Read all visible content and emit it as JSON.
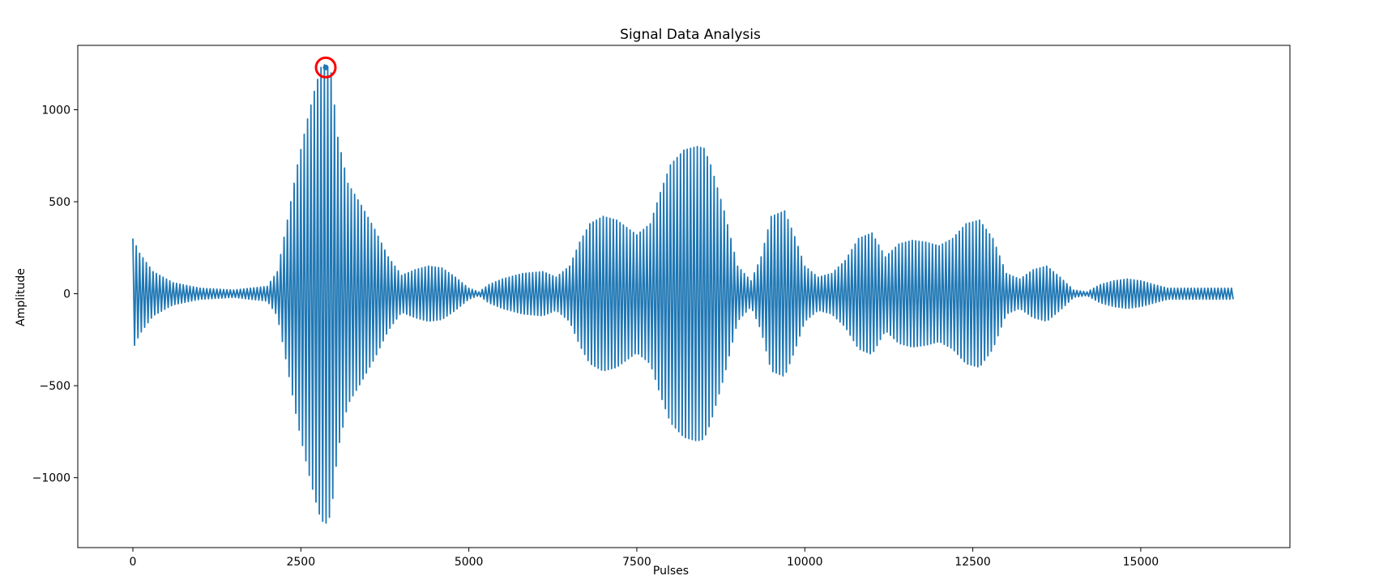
{
  "chart_data": {
    "type": "line",
    "title": "Signal Data Analysis",
    "xlabel": "Pulses",
    "ylabel": "Amplitude",
    "xlim": [
      -820,
      17220
    ],
    "ylim": [
      -1380,
      1350
    ],
    "xticks": [
      0,
      2500,
      5000,
      7500,
      10000,
      12500,
      15000
    ],
    "yticks": [
      -1000,
      -500,
      0,
      500,
      1000
    ],
    "xtick_labels": [
      "0",
      "2500",
      "5000",
      "7500",
      "10000",
      "12500",
      "15000"
    ],
    "ytick_labels": [
      "−1000",
      "−500",
      "0",
      "500",
      "1000"
    ],
    "grid": false,
    "legend": "none",
    "line_color": "#1f77b4",
    "series": [
      {
        "name": "",
        "oscillation_period": 50,
        "x_range": [
          0,
          16384
        ],
        "envelope": {
          "x": [
            0,
            100,
            300,
            600,
            1000,
            1500,
            2000,
            2150,
            2300,
            2450,
            2600,
            2700,
            2800,
            2870,
            2950,
            3050,
            3200,
            3400,
            3600,
            3800,
            4000,
            4200,
            4400,
            4600,
            4800,
            5000,
            5150,
            5300,
            5500,
            5800,
            6100,
            6300,
            6500,
            6650,
            6800,
            7000,
            7200,
            7500,
            7700,
            7850,
            8000,
            8200,
            8400,
            8500,
            8600,
            8800,
            9000,
            9200,
            9350,
            9500,
            9700,
            9850,
            10000,
            10200,
            10400,
            10600,
            10800,
            11000,
            11200,
            11400,
            11600,
            11800,
            12000,
            12200,
            12400,
            12600,
            12800,
            13000,
            13200,
            13400,
            13600,
            13800,
            14000,
            14200,
            14400,
            14600,
            14800,
            15000,
            15200,
            15400,
            15600,
            15800,
            16000,
            16200,
            16384
          ],
          "y": [
            300,
            220,
            120,
            60,
            30,
            20,
            40,
            120,
            400,
            700,
            950,
            1100,
            1230,
            1250,
            1200,
            850,
            600,
            480,
            350,
            200,
            100,
            130,
            150,
            140,
            90,
            30,
            10,
            50,
            80,
            110,
            120,
            90,
            150,
            280,
            380,
            420,
            400,
            320,
            380,
            550,
            700,
            780,
            800,
            790,
            700,
            450,
            150,
            70,
            200,
            420,
            450,
            310,
            150,
            90,
            110,
            180,
            300,
            330,
            200,
            270,
            290,
            280,
            260,
            300,
            380,
            400,
            300,
            110,
            80,
            130,
            150,
            90,
            20,
            10,
            50,
            70,
            80,
            70,
            50,
            30,
            30,
            30,
            30,
            30,
            30
          ]
        }
      }
    ],
    "annotation": {
      "type": "circle",
      "x": 2870,
      "y": 1230,
      "color": "#ff0000"
    }
  }
}
